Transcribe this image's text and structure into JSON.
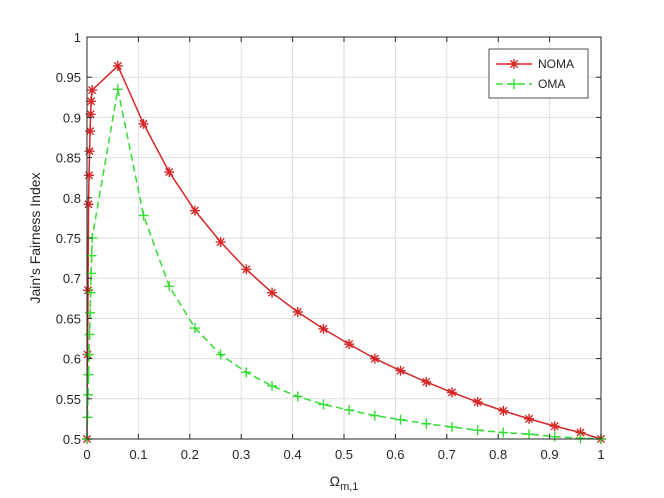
{
  "chart_data": {
    "type": "line",
    "xlabel": "Ω",
    "xlabel_subscript": "m,1",
    "ylabel": "Jain's Fairness Index",
    "xlim": [
      0,
      1
    ],
    "ylim": [
      0.5,
      1
    ],
    "x_ticks": [
      0,
      0.1,
      0.2,
      0.3,
      0.4,
      0.5,
      0.6,
      0.7,
      0.8,
      0.9,
      1
    ],
    "y_ticks": [
      0.5,
      0.55,
      0.6,
      0.65,
      0.7,
      0.75,
      0.8,
      0.85,
      0.9,
      0.95,
      1
    ],
    "grid": true,
    "legend_position": "top-right",
    "series": [
      {
        "name": "NOMA",
        "color": "#d62728",
        "line": "solid",
        "marker": "asterisk",
        "points": [
          [
            0.0,
            0.5
          ],
          [
            0.001,
            0.605
          ],
          [
            0.002,
            0.685
          ],
          [
            0.003,
            0.792
          ],
          [
            0.004,
            0.828
          ],
          [
            0.005,
            0.858
          ],
          [
            0.006,
            0.883
          ],
          [
            0.007,
            0.904
          ],
          [
            0.008,
            0.92
          ],
          [
            0.01,
            0.934
          ],
          [
            0.06,
            0.964
          ],
          [
            0.11,
            0.892
          ],
          [
            0.16,
            0.832
          ],
          [
            0.21,
            0.784
          ],
          [
            0.26,
            0.745
          ],
          [
            0.31,
            0.711
          ],
          [
            0.36,
            0.682
          ],
          [
            0.41,
            0.658
          ],
          [
            0.46,
            0.637
          ],
          [
            0.51,
            0.618
          ],
          [
            0.56,
            0.6
          ],
          [
            0.61,
            0.585
          ],
          [
            0.66,
            0.571
          ],
          [
            0.71,
            0.558
          ],
          [
            0.76,
            0.546
          ],
          [
            0.81,
            0.535
          ],
          [
            0.86,
            0.525
          ],
          [
            0.91,
            0.516
          ],
          [
            0.96,
            0.508
          ],
          [
            1.0,
            0.5
          ]
        ]
      },
      {
        "name": "OMA",
        "color": "#33dd33",
        "line": "dashed",
        "marker": "plus",
        "points": [
          [
            0.0,
            0.5
          ],
          [
            0.001,
            0.527
          ],
          [
            0.002,
            0.555
          ],
          [
            0.003,
            0.58
          ],
          [
            0.004,
            0.605
          ],
          [
            0.005,
            0.63
          ],
          [
            0.006,
            0.657
          ],
          [
            0.007,
            0.682
          ],
          [
            0.008,
            0.706
          ],
          [
            0.009,
            0.728
          ],
          [
            0.01,
            0.75
          ],
          [
            0.06,
            0.935
          ],
          [
            0.11,
            0.778
          ],
          [
            0.16,
            0.69
          ],
          [
            0.21,
            0.638
          ],
          [
            0.26,
            0.605
          ],
          [
            0.31,
            0.583
          ],
          [
            0.36,
            0.566
          ],
          [
            0.41,
            0.553
          ],
          [
            0.46,
            0.543
          ],
          [
            0.51,
            0.536
          ],
          [
            0.56,
            0.529
          ],
          [
            0.61,
            0.524
          ],
          [
            0.66,
            0.519
          ],
          [
            0.71,
            0.515
          ],
          [
            0.76,
            0.511
          ],
          [
            0.81,
            0.508
          ],
          [
            0.86,
            0.506
          ],
          [
            0.91,
            0.503
          ],
          [
            0.96,
            0.501
          ],
          [
            1.0,
            0.5
          ]
        ]
      }
    ]
  }
}
